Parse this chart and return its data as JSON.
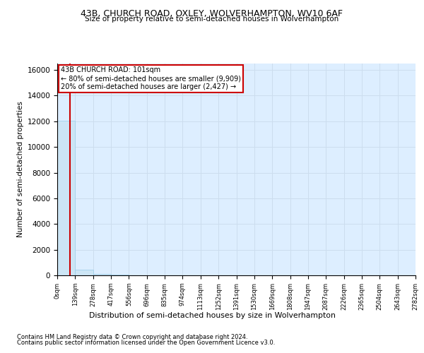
{
  "title_line1": "43B, CHURCH ROAD, OXLEY, WOLVERHAMPTON, WV10 6AF",
  "title_line2": "Size of property relative to semi-detached houses in Wolverhampton",
  "xlabel_bottom": "Distribution of semi-detached houses by size in Wolverhampton",
  "ylabel": "Number of semi-detached properties",
  "footnote1": "Contains HM Land Registry data © Crown copyright and database right 2024.",
  "footnote2": "Contains public sector information licensed under the Open Government Licence v3.0.",
  "property_size": 101,
  "annotation_line1": "43B CHURCH ROAD: 101sqm",
  "annotation_line2": "← 80% of semi-detached houses are smaller (9,909)",
  "annotation_line3": "20% of semi-detached houses are larger (2,427) →",
  "bar_color": "#cce5f5",
  "bar_edge_color": "#99cce8",
  "marker_color": "#cc0000",
  "annotation_box_edge": "#cc0000",
  "annotation_box_face": "#ffffff",
  "grid_color": "#ccddee",
  "background_color": "#ddeeff",
  "ylim": [
    0,
    16500
  ],
  "yticks": [
    0,
    2000,
    4000,
    6000,
    8000,
    10000,
    12000,
    14000,
    16000
  ],
  "bin_labels": [
    "0sqm",
    "139sqm",
    "278sqm",
    "417sqm",
    "556sqm",
    "696sqm",
    "835sqm",
    "974sqm",
    "1113sqm",
    "1252sqm",
    "1391sqm",
    "1530sqm",
    "1669sqm",
    "1808sqm",
    "1947sqm",
    "2087sqm",
    "2226sqm",
    "2365sqm",
    "2504sqm",
    "2643sqm",
    "2782sqm"
  ],
  "bar_heights": [
    12050,
    450,
    130,
    55,
    25,
    12,
    7,
    5,
    3,
    2,
    2,
    1,
    1,
    1,
    1,
    1,
    1,
    0,
    0,
    0
  ]
}
